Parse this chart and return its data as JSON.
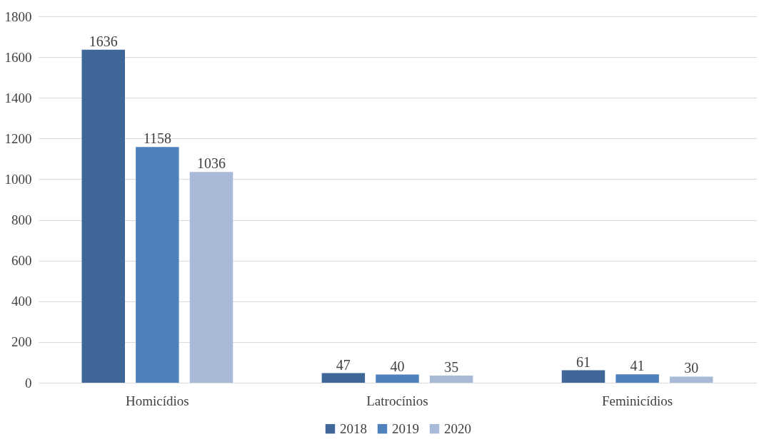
{
  "chart_data": {
    "type": "bar",
    "categories": [
      "Homicídios",
      "Latrocínios",
      "Feminicídios"
    ],
    "series": [
      {
        "name": "2018",
        "color": "#3f6898",
        "values": [
          1636,
          47,
          61
        ]
      },
      {
        "name": "2019",
        "color": "#4f81bd",
        "values": [
          1158,
          40,
          41
        ]
      },
      {
        "name": "2020",
        "color": "#a9bad8",
        "values": [
          1036,
          35,
          30
        ]
      }
    ],
    "ylim": [
      0,
      1800
    ],
    "yticks": [
      0,
      200,
      400,
      600,
      800,
      1000,
      1200,
      1400,
      1600,
      1800
    ],
    "grid": "y",
    "legend": "bottom",
    "data_labels": true
  }
}
